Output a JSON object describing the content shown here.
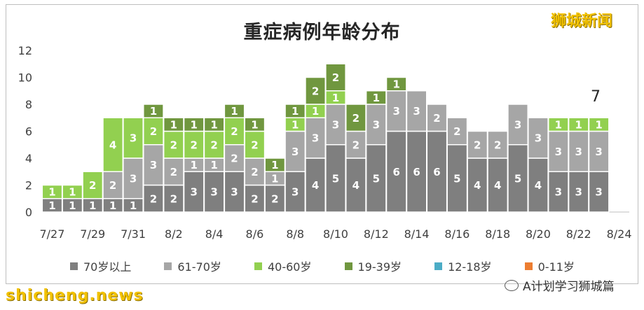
{
  "brand": "狮城新闻",
  "footer": {
    "watermark_left": "shicheng.news",
    "watermark_right": "A计划学习狮城篇"
  },
  "callout": "7",
  "chart_data": {
    "type": "bar",
    "stacked": true,
    "title": "重症病例年龄分布",
    "xlabel": "",
    "ylabel": "",
    "ylim": [
      0,
      12
    ],
    "yticks": [
      0,
      2,
      4,
      6,
      8,
      10,
      12
    ],
    "grid": false,
    "legend_position": "bottom",
    "x": [
      "7/27",
      "7/28",
      "7/29",
      "7/30",
      "7/31",
      "8/1",
      "8/2",
      "8/3",
      "8/4",
      "8/5",
      "8/6",
      "8/7",
      "8/8",
      "8/9",
      "8/10",
      "8/11",
      "8/12",
      "8/13",
      "8/14",
      "8/15",
      "8/16",
      "8/17",
      "8/18",
      "8/19",
      "8/20",
      "8/21",
      "8/22",
      "8/23",
      "8/24"
    ],
    "xtick_labels": [
      "7/27",
      "7/29",
      "7/31",
      "8/2",
      "8/4",
      "8/6",
      "8/8",
      "8/10",
      "8/12",
      "8/14",
      "8/16",
      "8/18",
      "8/20",
      "8/22",
      "8/24"
    ],
    "series": [
      {
        "name": "70岁以上",
        "color": "#7f7f7f",
        "values": [
          1,
          1,
          1,
          1,
          1,
          2,
          2,
          3,
          3,
          3,
          2,
          2,
          3,
          4,
          5,
          4,
          5,
          6,
          6,
          6,
          5,
          4,
          4,
          5,
          4,
          3,
          3,
          3,
          0
        ]
      },
      {
        "name": "61-70岁",
        "color": "#a6a6a6",
        "values": [
          0,
          0,
          0,
          2,
          3,
          3,
          2,
          1,
          1,
          2,
          2,
          1,
          3,
          3,
          3,
          2,
          3,
          3,
          3,
          2,
          2,
          2,
          2,
          3,
          3,
          3,
          3,
          3,
          0
        ]
      },
      {
        "name": "40-60岁",
        "color": "#92d050",
        "values": [
          1,
          1,
          2,
          4,
          3,
          2,
          2,
          2,
          2,
          2,
          2,
          0,
          1,
          1,
          1,
          0,
          0,
          0,
          0,
          0,
          0,
          0,
          0,
          0,
          0,
          1,
          1,
          1,
          0
        ]
      },
      {
        "name": "19-39岁",
        "color": "#70973f",
        "values": [
          0,
          0,
          0,
          0,
          0,
          1,
          1,
          1,
          1,
          1,
          1,
          1,
          1,
          2,
          2,
          2,
          1,
          1,
          0,
          0,
          0,
          0,
          0,
          0,
          0,
          0,
          0,
          0,
          0
        ]
      },
      {
        "name": "12-18岁",
        "color": "#4bacc6",
        "values": [
          0,
          0,
          0,
          0,
          0,
          0,
          0,
          0,
          0,
          0,
          0,
          0,
          0,
          0,
          0,
          0,
          0,
          0,
          0,
          0,
          0,
          0,
          0,
          0,
          0,
          0,
          0,
          0,
          0
        ]
      },
      {
        "name": "0-11岁",
        "color": "#ed7d31",
        "values": [
          0,
          0,
          0,
          0,
          0,
          0,
          0,
          0,
          0,
          0,
          0,
          0,
          0,
          0,
          0,
          0,
          0,
          0,
          0,
          0,
          0,
          0,
          0,
          0,
          0,
          0,
          0,
          0,
          0
        ]
      }
    ]
  }
}
